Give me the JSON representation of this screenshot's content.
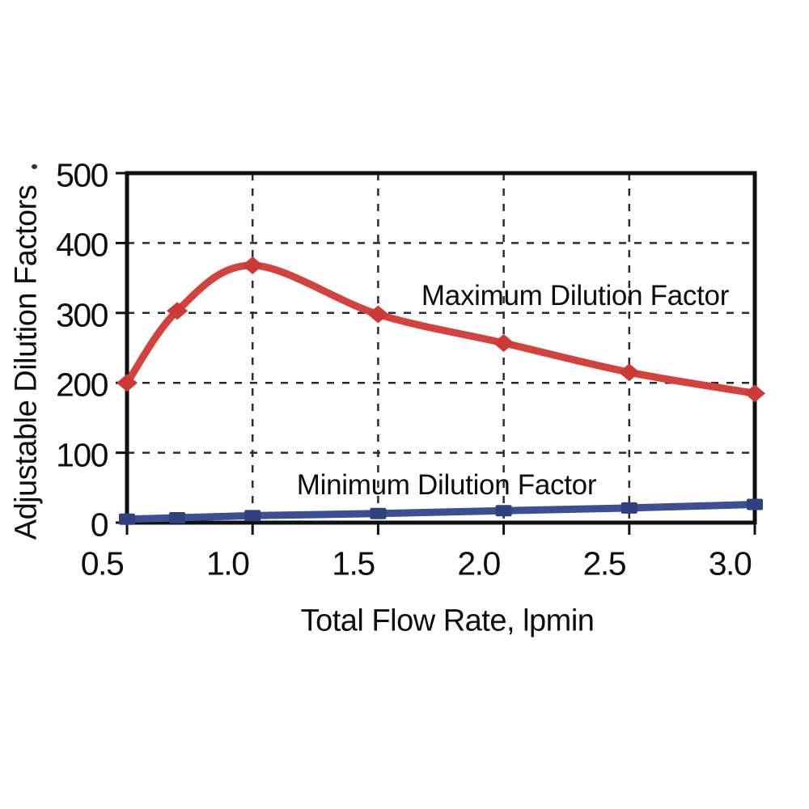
{
  "figure": {
    "background_color": "#ffffff",
    "frame_color": "#101010",
    "gridline_color": "#2b2b2b",
    "gridline_style": "dashed"
  },
  "chart_data": {
    "type": "line",
    "title": "",
    "xlabel": "Total Flow Rate, lpmin",
    "ylabel": "Adjustable Dilution Factors",
    "x": [
      0.5,
      0.7,
      1.0,
      1.5,
      2.0,
      2.5,
      3.0
    ],
    "series": [
      {
        "name": "Maximum Dilution Factor",
        "color": "#d4423e",
        "marker_color": "#cd3935",
        "marker": "diamond",
        "smooth": true,
        "values": [
          200,
          303,
          368,
          298,
          257,
          215,
          185
        ]
      },
      {
        "name": "Minimum Dilution Factor",
        "color": "#3c4f93",
        "marker_color": "#31417f",
        "marker": "square",
        "smooth": false,
        "values": [
          5,
          7,
          10,
          13,
          17,
          21,
          26
        ]
      }
    ],
    "xlim": [
      0.5,
      3.0
    ],
    "ylim": [
      0,
      500
    ],
    "x_ticks": [
      0.5,
      1.0,
      1.5,
      2.0,
      2.5,
      3.0
    ],
    "x_tick_labels": [
      "0.5",
      "1.0",
      "1.5",
      "2.0",
      "2.5",
      "3.0"
    ],
    "y_ticks": [
      0,
      100,
      200,
      300,
      400,
      500
    ],
    "y_tick_labels": [
      "0",
      "100",
      "200",
      "300",
      "400",
      "500"
    ],
    "grid": "dashed",
    "legend_position": "inline text annotations above each curve"
  }
}
